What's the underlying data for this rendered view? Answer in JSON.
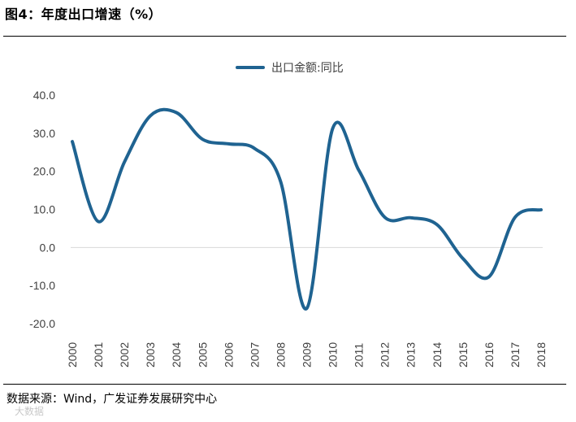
{
  "header": {
    "title": "图4：年度出口增速（%）"
  },
  "footer": {
    "source": "数据来源：Wind，广发证券发展研究中心",
    "watermark": "大数据"
  },
  "chart_data": {
    "type": "line",
    "title": "图4：年度出口增速（%）",
    "xlabel": "",
    "ylabel": "",
    "ylim": [
      -20,
      40
    ],
    "yticks": [
      40,
      30,
      20,
      10,
      0,
      -10,
      -20
    ],
    "ytick_labels": [
      "40.0",
      "30.0",
      "20.0",
      "10.0",
      "0.0",
      "-10.0",
      "-20.0"
    ],
    "categories": [
      "2000",
      "2001",
      "2002",
      "2003",
      "2004",
      "2005",
      "2006",
      "2007",
      "2008",
      "2009",
      "2010",
      "2011",
      "2012",
      "2013",
      "2014",
      "2015",
      "2016",
      "2017",
      "2018"
    ],
    "series": [
      {
        "name": "出口金额:同比",
        "color": "#1f6391",
        "values": [
          27.8,
          6.8,
          22.4,
          34.6,
          35.4,
          28.4,
          27.2,
          26.0,
          17.3,
          -16.0,
          31.3,
          20.3,
          7.9,
          7.8,
          6.0,
          -2.9,
          -7.7,
          7.9,
          9.9
        ]
      }
    ],
    "legend_position": "top-center",
    "grid": "zero-line-only"
  }
}
